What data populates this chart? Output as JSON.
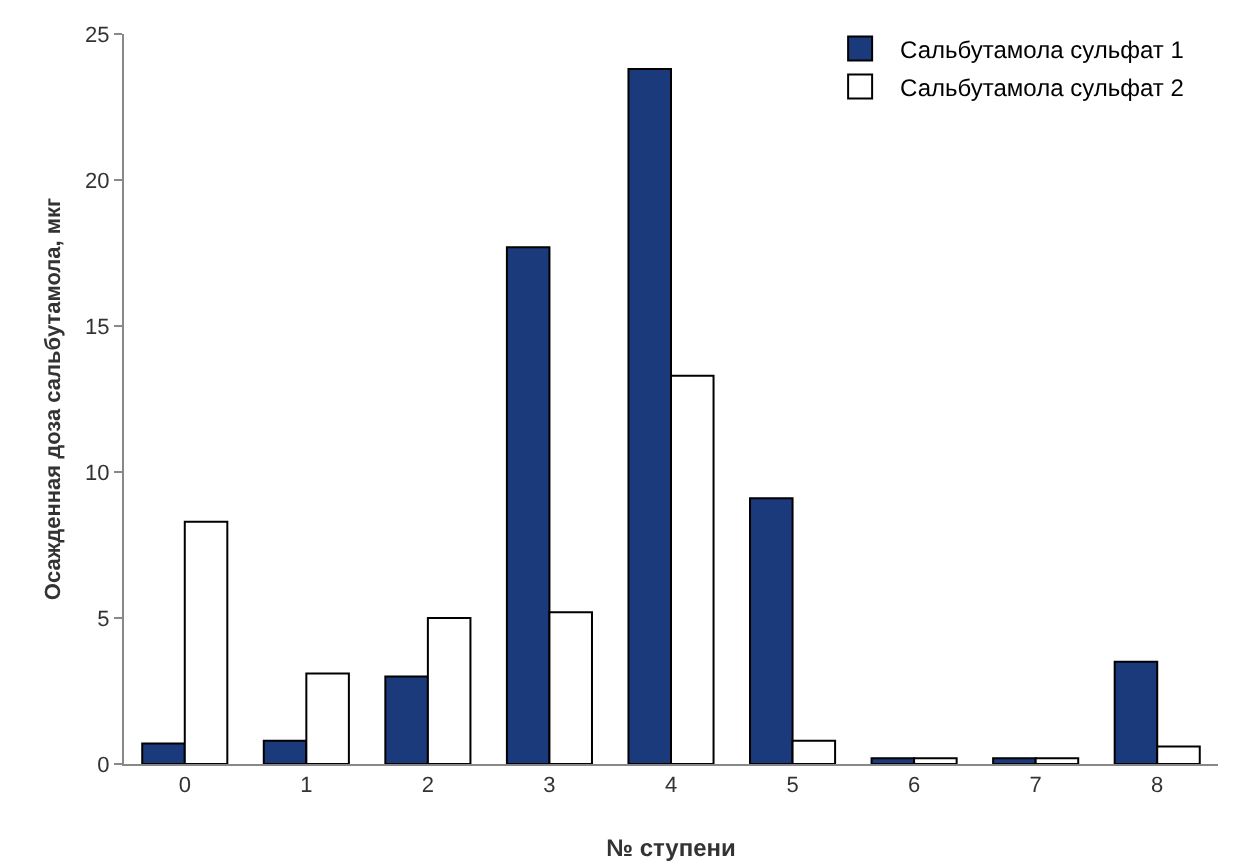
{
  "chart_data": {
    "type": "bar",
    "xlabel": "№ ступени",
    "ylabel": "Осажденная доза сальбутамола, мкг",
    "categories": [
      "0",
      "1",
      "2",
      "3",
      "4",
      "5",
      "6",
      "7",
      "8"
    ],
    "series": [
      {
        "name": "Сальбутамола сульфат 1",
        "color": "#1b3a7c",
        "values": [
          0.7,
          0.8,
          3.0,
          17.7,
          23.8,
          9.1,
          0.2,
          0.2,
          3.5
        ]
      },
      {
        "name": "Сальбутамола сульфат 2",
        "color": "#ffffff",
        "values": [
          8.3,
          3.1,
          5.0,
          5.2,
          13.3,
          0.8,
          0.2,
          0.2,
          0.6
        ]
      }
    ],
    "ylim": [
      0,
      25
    ],
    "yticks": [
      0,
      5,
      10,
      15,
      20,
      25
    ],
    "grid": false,
    "legend": "top right"
  }
}
